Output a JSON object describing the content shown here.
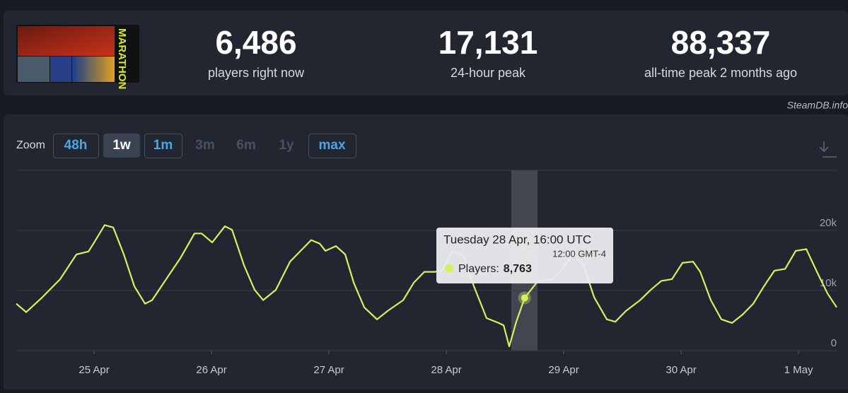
{
  "header": {
    "logo_text": "MARATHON",
    "stats": [
      {
        "value": "6,486",
        "label": "players right now"
      },
      {
        "value": "17,131",
        "label": "24-hour peak"
      },
      {
        "value": "88,337",
        "label": "all-time peak 2 months ago"
      }
    ],
    "credit": "SteamDB.info"
  },
  "zoom": {
    "label": "Zoom",
    "options": [
      {
        "label": "48h",
        "state": "enabled"
      },
      {
        "label": "1w",
        "state": "active"
      },
      {
        "label": "1m",
        "state": "enabled"
      },
      {
        "label": "3m",
        "state": "disabled"
      },
      {
        "label": "6m",
        "state": "disabled"
      },
      {
        "label": "1y",
        "state": "disabled"
      },
      {
        "label": "max",
        "state": "enabled"
      }
    ]
  },
  "chart_data": {
    "type": "line",
    "color": "#d4f25c",
    "grid": true,
    "x": [
      -0.663,
      -0.578,
      -0.44,
      -0.289,
      -0.151,
      -0.048,
      -0.006,
      0.09,
      0.163,
      0.253,
      0.343,
      0.434,
      0.494,
      0.614,
      0.735,
      0.855,
      0.916,
      1.006,
      1.114,
      1.175,
      1.277,
      1.367,
      1.44,
      1.548,
      1.669,
      1.759,
      1.849,
      1.922,
      1.97,
      2.06,
      2.139,
      2.211,
      2.301,
      2.41,
      2.5,
      2.633,
      2.723,
      2.813,
      2.904,
      2.964,
      3.054,
      3.145,
      3.235,
      3.343,
      3.446,
      3.488,
      3.536,
      3.596,
      3.667,
      3.777,
      3.898,
      3.988,
      4.078,
      4.169,
      4.259,
      4.367,
      4.44,
      4.53,
      4.651,
      4.741,
      4.831,
      4.922,
      5.012,
      5.102,
      5.163,
      5.253,
      5.343,
      5.434,
      5.524,
      5.614,
      5.705,
      5.795,
      5.886,
      5.976,
      6.066,
      6.157,
      6.247,
      6.325
    ],
    "values": [
      7800,
      6400,
      8900,
      11900,
      16000,
      16500,
      17800,
      20900,
      20500,
      16000,
      10700,
      7800,
      8400,
      11900,
      15400,
      19500,
      19500,
      18000,
      20700,
      20100,
      14200,
      10100,
      8400,
      10100,
      14800,
      16600,
      18400,
      17800,
      16600,
      17400,
      16000,
      11300,
      7200,
      5200,
      6600,
      8400,
      11300,
      13100,
      13100,
      13400,
      16600,
      15800,
      10700,
      5400,
      4600,
      4200,
      700,
      4800,
      8763,
      11500,
      11900,
      13600,
      16000,
      14200,
      8900,
      5200,
      4800,
      6600,
      8400,
      10100,
      11600,
      11900,
      14600,
      14800,
      13100,
      8400,
      5200,
      4600,
      6000,
      7800,
      10700,
      13300,
      13600,
      16600,
      16900,
      13100,
      9500,
      7200
    ],
    "xlim": [
      -0.663,
      6.325
    ],
    "xticks": [
      {
        "value": 0,
        "label": "25 Apr"
      },
      {
        "value": 1,
        "label": "26 Apr"
      },
      {
        "value": 2,
        "label": "27 Apr"
      },
      {
        "value": 3,
        "label": "28 Apr"
      },
      {
        "value": 4,
        "label": "29 Apr"
      },
      {
        "value": 5,
        "label": "30 Apr"
      },
      {
        "value": 6,
        "label": "1 May"
      }
    ],
    "ylim": [
      0,
      30000
    ],
    "yticks": [
      0,
      {
        "value": 10000,
        "label": "10k"
      },
      {
        "value": 20000,
        "label": "20k"
      }
    ],
    "highlight": {
      "x": 3.667,
      "value": 8763,
      "value_label": "8,763",
      "title": "Tuesday 28 Apr, 16:00 UTC",
      "local_time": "12:00 GMT-4",
      "series_label": "Players:"
    }
  }
}
